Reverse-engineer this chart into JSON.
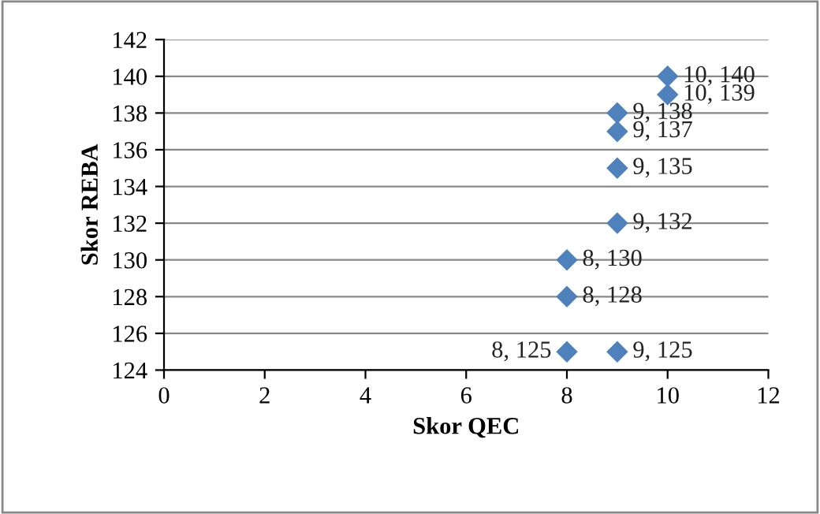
{
  "chart_data": {
    "type": "scatter",
    "xlabel": "Skor QEC",
    "ylabel": "Skor REBA",
    "series": [
      {
        "color": "#4f81bd",
        "x": [
          10,
          10,
          9,
          9,
          9,
          9,
          8,
          8,
          8,
          9
        ],
        "values": [
          140,
          139,
          138,
          137,
          135,
          132,
          130,
          128,
          125,
          125
        ],
        "value_labels": [
          "10, 140",
          "10, 139",
          "9, 138",
          "9, 137",
          "9, 135",
          "9, 132",
          "8, 130",
          "8, 128",
          "8, 125",
          "9, 125"
        ]
      }
    ],
    "xlim": [
      0,
      12
    ],
    "xticks": [
      0,
      2,
      4,
      6,
      8,
      10,
      12
    ],
    "ylim": [
      124,
      142
    ],
    "yticks": [
      124,
      126,
      128,
      130,
      132,
      134,
      136,
      138,
      140,
      142
    ],
    "grid": "y",
    "marker": "diamond"
  }
}
